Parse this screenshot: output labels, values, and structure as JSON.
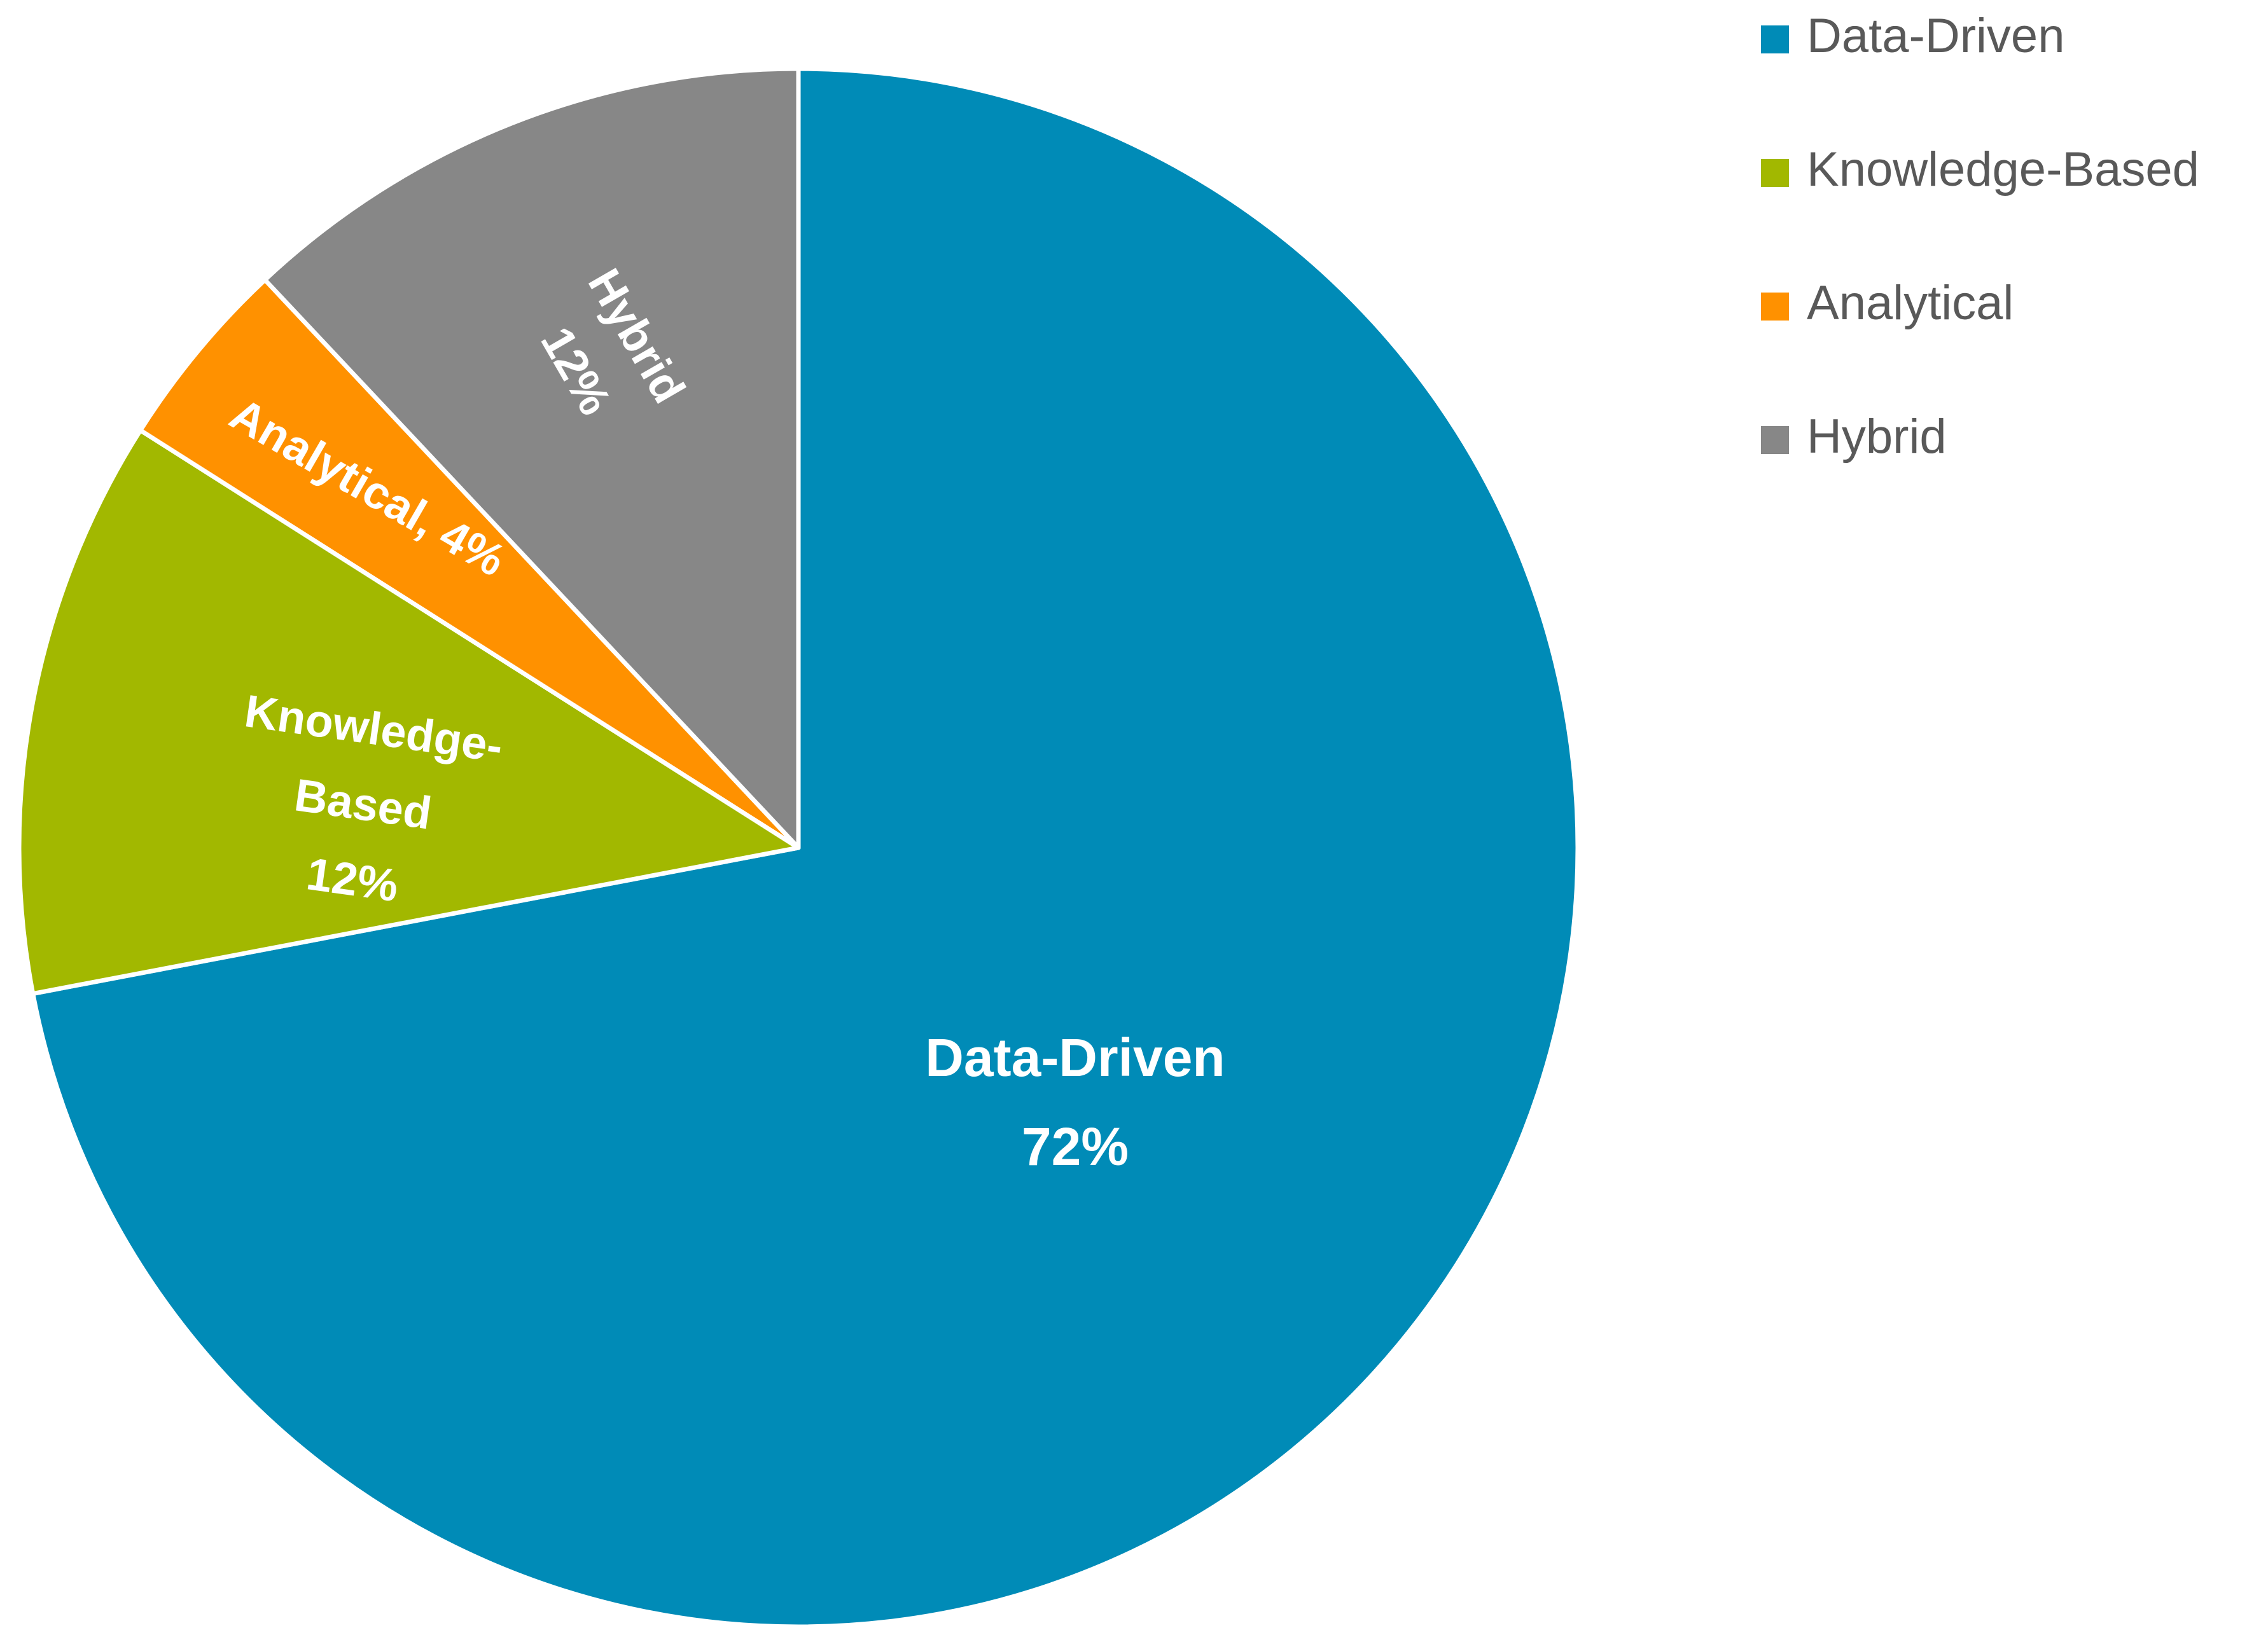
{
  "chart_data": {
    "type": "pie",
    "slices": [
      {
        "name": "Data-Driven",
        "value": 72,
        "label_lines": [
          "Data-Driven",
          "72%"
        ],
        "color": "#008bb7"
      },
      {
        "name": "Knowledge-Based",
        "value": 12,
        "label_lines": [
          "Knowledge-",
          "Based",
          "12%"
        ],
        "color": "#a2b800"
      },
      {
        "name": "Analytical",
        "value": 4,
        "label_lines": [
          "Analytical, 4%"
        ],
        "color": "#ff9100"
      },
      {
        "name": "Hybrid",
        "value": 12,
        "label_lines": [
          "Hybrid",
          "12%"
        ],
        "color": "#878787"
      }
    ],
    "legend": {
      "position": "top-right",
      "entries": [
        "Data-Driven",
        "Knowledge-Based",
        "Analytical",
        "Hybrid"
      ]
    },
    "start_angle": "12 o'clock",
    "direction": "clockwise"
  }
}
